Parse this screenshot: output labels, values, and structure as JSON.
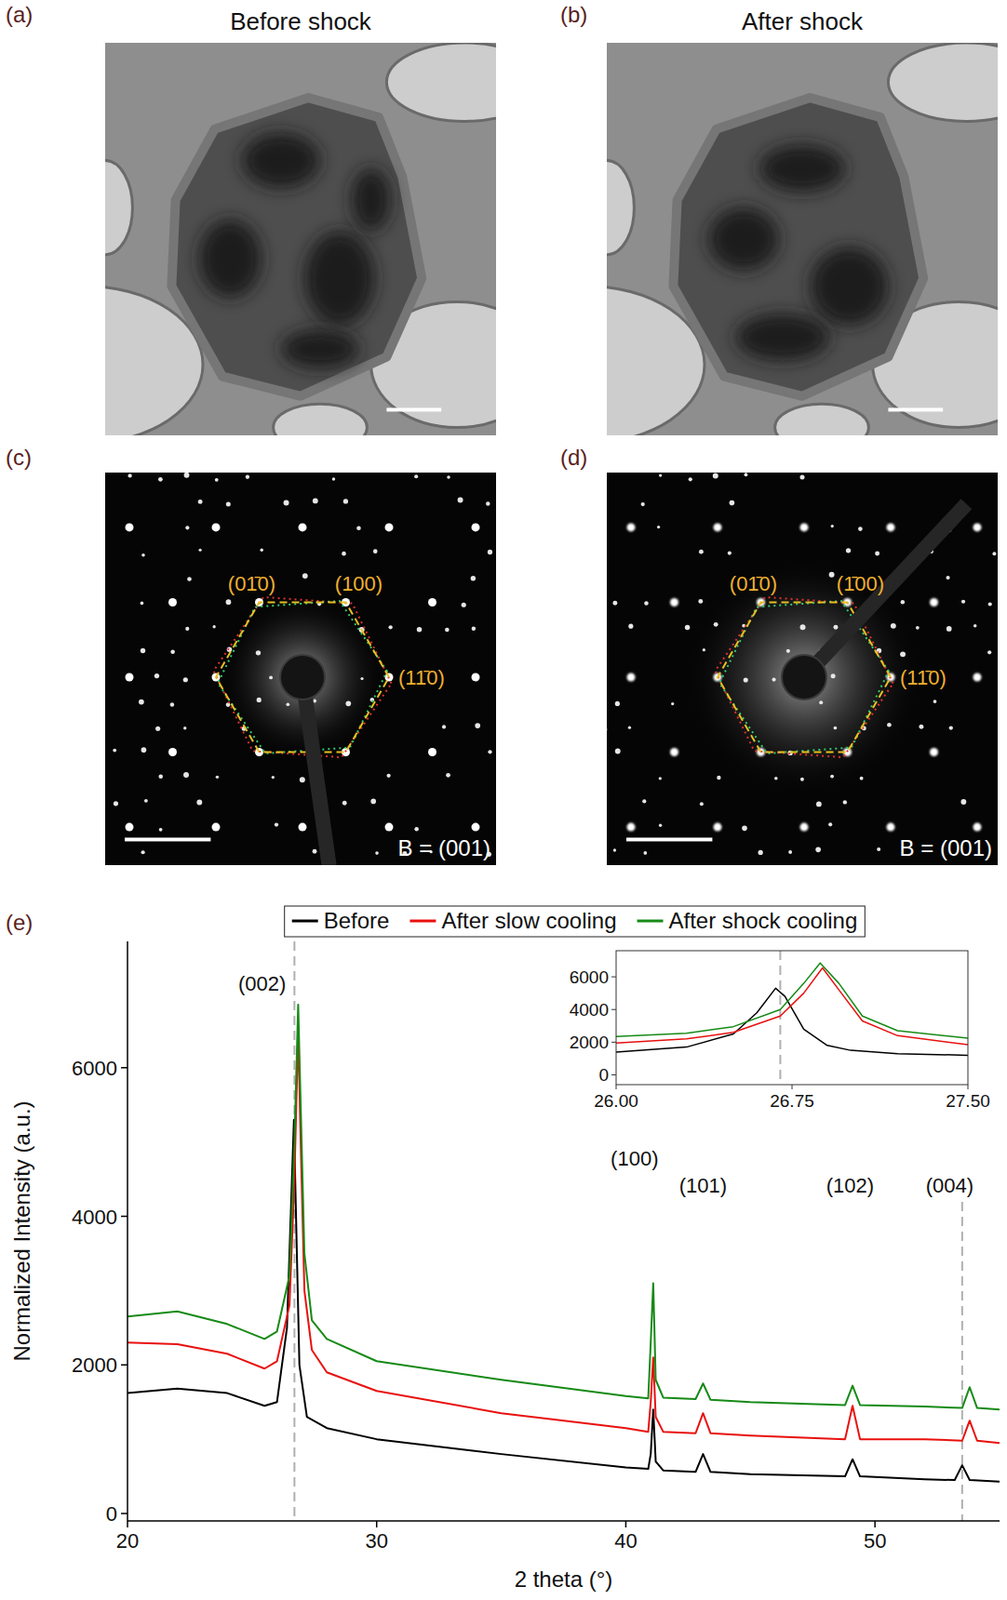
{
  "panels": [
    {
      "label": "(a)",
      "title": "Before shock"
    },
    {
      "label": "(b)",
      "title": "After shock"
    },
    {
      "label": "(c)",
      "zone_axis": "B = (001)",
      "spots": [
        "(01̄0)",
        "(100)",
        "(11̄0)"
      ]
    },
    {
      "label": "(d)",
      "zone_axis": "B = (001)",
      "spots": [
        "(01̄0)",
        "(1̄00)",
        "(11̄0)"
      ]
    }
  ],
  "chart_data": {
    "type": "line",
    "panel_label": "(e)",
    "x_label": "2 theta (°)",
    "y_label": "Normalized Intensity (a.u.)",
    "xlim": [
      20,
      55
    ],
    "xticks": [
      20,
      30,
      40,
      50
    ],
    "ylim": [
      -100,
      7700
    ],
    "yticks": [
      0,
      2000,
      4000,
      6000
    ],
    "legend": "top",
    "series": [
      {
        "name": "Before",
        "color": "#000000",
        "x": [
          20,
          22,
          24,
          25.5,
          26,
          26.4,
          26.6,
          26.68,
          26.75,
          26.9,
          27.2,
          28,
          30,
          35,
          40,
          40.9,
          41.0,
          41.1,
          41.2,
          41.5,
          42.8,
          43.1,
          43.4,
          45,
          48.8,
          49.1,
          49.4,
          52,
          53.2,
          53.5,
          53.8,
          55
        ],
        "values": [
          1620,
          1680,
          1620,
          1450,
          1500,
          2500,
          4500,
          5300,
          4200,
          2000,
          1300,
          1150,
          1000,
          800,
          620,
          600,
          800,
          1400,
          700,
          580,
          560,
          800,
          560,
          530,
          500,
          730,
          500,
          460,
          450,
          650,
          450,
          430
        ]
      },
      {
        "name": "After slow cooling",
        "color": "#e8100e",
        "x": [
          20,
          22,
          24,
          25.5,
          26,
          26.5,
          26.7,
          26.85,
          26.95,
          27.1,
          27.4,
          28,
          30,
          35,
          40,
          40.9,
          41.0,
          41.1,
          41.2,
          41.5,
          42.8,
          43.1,
          43.4,
          45,
          48.8,
          49.1,
          49.4,
          52,
          53.5,
          53.8,
          54.1,
          55
        ],
        "values": [
          2300,
          2280,
          2150,
          1950,
          2050,
          2800,
          4500,
          6500,
          5000,
          3000,
          2200,
          1900,
          1650,
          1350,
          1150,
          1100,
          1500,
          2100,
          1300,
          1100,
          1080,
          1350,
          1080,
          1050,
          1000,
          1450,
          1000,
          1000,
          980,
          1250,
          980,
          950
        ]
      },
      {
        "name": "After shock cooling",
        "color": "#168a16",
        "x": [
          20,
          22,
          24,
          25.5,
          26,
          26.5,
          26.7,
          26.85,
          26.95,
          27.1,
          27.4,
          28,
          30,
          35,
          40,
          40.9,
          41.0,
          41.1,
          41.2,
          41.5,
          42.8,
          43.1,
          43.4,
          45,
          48.8,
          49.1,
          49.4,
          52,
          53.5,
          53.8,
          54.1,
          55
        ],
        "values": [
          2650,
          2720,
          2550,
          2350,
          2450,
          3200,
          5000,
          6850,
          5500,
          3500,
          2600,
          2350,
          2050,
          1800,
          1580,
          1550,
          2300,
          3100,
          1800,
          1560,
          1540,
          1750,
          1530,
          1500,
          1460,
          1720,
          1460,
          1440,
          1420,
          1700,
          1420,
          1400
        ]
      }
    ],
    "vlines": [
      26.7,
      53.5
    ],
    "annotations": [
      {
        "text": "(002)",
        "x": 25.4,
        "y": 7040
      },
      {
        "text": "(100)",
        "x": 40.35,
        "y": 4680
      },
      {
        "text": "(101)",
        "x": 43.1,
        "y": 4320
      },
      {
        "text": "(102)",
        "x": 49.0,
        "y": 4320
      },
      {
        "text": "(004)",
        "x": 53.0,
        "y": 4320
      }
    ],
    "inset": {
      "xlim": [
        26.0,
        27.5
      ],
      "xticks": [
        {
          "value": 26.0,
          "label": "26.00"
        },
        {
          "value": 26.75,
          "label": "26.75"
        },
        {
          "value": 27.5,
          "label": "27.50"
        }
      ],
      "ylim": [
        -600,
        7600
      ],
      "yticks": [
        0,
        2000,
        4000,
        6000
      ],
      "vlines": [
        26.7
      ],
      "series": [
        {
          "name": "Before",
          "color": "#000000",
          "x": [
            26.0,
            26.3,
            26.5,
            26.6,
            26.68,
            26.72,
            26.8,
            26.9,
            27.0,
            27.2,
            27.5
          ],
          "values": [
            1400,
            1700,
            2500,
            3800,
            5300,
            4800,
            2800,
            1800,
            1500,
            1300,
            1200
          ]
        },
        {
          "name": "After slow cooling",
          "color": "#e8100e",
          "x": [
            26.0,
            26.3,
            26.5,
            26.7,
            26.8,
            26.88,
            26.95,
            27.05,
            27.2,
            27.5
          ],
          "values": [
            1950,
            2200,
            2600,
            3600,
            5000,
            6550,
            5200,
            3300,
            2400,
            1850
          ]
        },
        {
          "name": "After shock cooling",
          "color": "#168a16",
          "x": [
            26.0,
            26.3,
            26.5,
            26.7,
            26.8,
            26.87,
            26.95,
            27.05,
            27.2,
            27.5
          ],
          "values": [
            2350,
            2550,
            2950,
            4000,
            5600,
            6850,
            5600,
            3600,
            2700,
            2250
          ]
        }
      ]
    }
  }
}
